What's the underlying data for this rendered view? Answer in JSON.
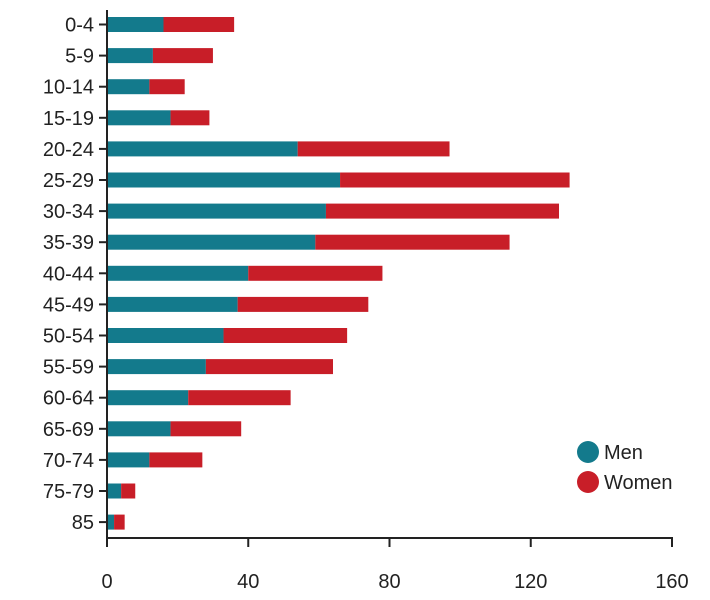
{
  "chart_data": {
    "type": "bar",
    "orientation": "horizontal",
    "stacked": true,
    "categories": [
      "0-4",
      "5-9",
      "10-14",
      "15-19",
      "20-24",
      "25-29",
      "30-34",
      "35-39",
      "40-44",
      "45-49",
      "50-54",
      "55-59",
      "60-64",
      "65-69",
      "70-74",
      "75-79",
      "85"
    ],
    "series": [
      {
        "name": "Men",
        "color": "#137a8c",
        "values": [
          16,
          13,
          12,
          18,
          54,
          66,
          62,
          59,
          40,
          37,
          33,
          28,
          23,
          18,
          12,
          4,
          2
        ]
      },
      {
        "name": "Women",
        "color": "#c81e28",
        "values": [
          20,
          17,
          10,
          11,
          43,
          65,
          66,
          55,
          38,
          37,
          35,
          36,
          29,
          20,
          15,
          4,
          3
        ]
      }
    ],
    "xlim": [
      0,
      160
    ],
    "xticks": [
      0,
      40,
      80,
      120,
      160
    ],
    "grid": false,
    "legend_position": "bottom-right",
    "title": "",
    "xlabel": "",
    "ylabel": ""
  }
}
